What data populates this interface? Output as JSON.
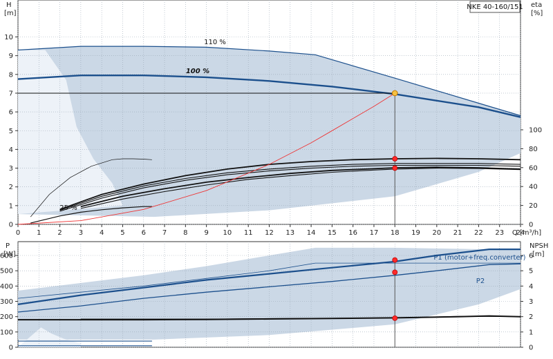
{
  "chart_data": [
    {
      "type": "line",
      "panel": "head",
      "title": "NKE 40-160/151",
      "ylabel_left": "H\n[m]",
      "ylabel_right": "eta\n[%]",
      "xlabel": "Q [m³/h]",
      "xlim": [
        0,
        24
      ],
      "ylim_left": [
        0,
        11
      ],
      "ylim_right": [
        0,
        100
      ],
      "x_ticks": [
        0,
        1,
        2,
        3,
        4,
        5,
        6,
        7,
        8,
        9,
        10,
        11,
        12,
        13,
        14,
        15,
        16,
        17,
        18,
        19,
        20,
        21,
        22,
        23,
        24
      ],
      "left_ticks": [
        0,
        1,
        2,
        3,
        4,
        5,
        6,
        7,
        8,
        9,
        10
      ],
      "right_ticks": [
        0,
        20,
        40,
        60,
        80,
        100
      ],
      "grid": true,
      "envelope_max": {
        "x": [
          0,
          3,
          6,
          9,
          12,
          14.2,
          18,
          22.5,
          24
        ],
        "y": [
          9.3,
          9.5,
          9.5,
          9.45,
          9.25,
          9.05,
          7.8,
          6.3,
          5.8
        ]
      },
      "envelope_min": {
        "x": [
          0,
          6.5,
          12,
          18,
          22,
          24
        ],
        "y": [
          0.55,
          0.4,
          0.75,
          1.5,
          2.8,
          3.8
        ]
      },
      "light_zone": {
        "x": [
          0,
          1.3,
          2.3,
          2.8,
          3.6,
          4.5,
          5
        ],
        "y": [
          9.3,
          9.3,
          7.7,
          5.2,
          3.5,
          2.2,
          1.0
        ]
      },
      "series": [
        {
          "name": "110 %",
          "x": [
            0,
            3,
            6,
            9,
            12,
            14.2,
            18,
            22.5,
            24
          ],
          "y": [
            9.3,
            9.5,
            9.5,
            9.45,
            9.25,
            9.05,
            7.8,
            6.3,
            5.8
          ]
        },
        {
          "name": "100 %",
          "x": [
            0,
            3,
            6,
            9,
            12,
            15,
            18,
            20,
            22,
            24
          ],
          "y": [
            7.75,
            7.95,
            7.95,
            7.85,
            7.65,
            7.35,
            6.95,
            6.6,
            6.25,
            5.72
          ]
        },
        {
          "name": "25 %",
          "x": [
            0.6,
            2,
            3,
            4,
            5,
            6,
            6.4
          ],
          "y": [
            0.07,
            0.45,
            0.65,
            0.78,
            0.88,
            0.95,
            0.95
          ]
        },
        {
          "x": [
            0.6,
            1.5,
            2.5,
            3.5,
            4.5,
            5,
            5.5,
            6,
            6.4
          ],
          "y": [
            0.4,
            1.6,
            2.5,
            3.1,
            3.45,
            3.5,
            3.5,
            3.48,
            3.45
          ]
        },
        {
          "x": [
            2,
            4,
            6,
            8,
            10,
            12,
            14,
            16,
            18,
            20,
            22,
            24
          ],
          "y": [
            0.7,
            1.4,
            1.95,
            2.35,
            2.65,
            2.85,
            3.0,
            3.1,
            3.15,
            3.15,
            3.15,
            3.1
          ]
        },
        {
          "x": [
            2,
            4,
            6,
            8,
            10,
            12,
            14,
            16,
            18,
            20,
            22,
            24
          ],
          "y": [
            0.75,
            1.5,
            2.05,
            2.45,
            2.75,
            2.95,
            3.1,
            3.2,
            3.25,
            3.25,
            3.25,
            3.2
          ]
        },
        {
          "x": [
            2,
            4,
            6,
            8,
            10,
            12,
            14,
            16,
            18,
            20,
            22,
            24
          ],
          "y": [
            0.8,
            1.6,
            2.15,
            2.6,
            2.95,
            3.2,
            3.35,
            3.45,
            3.5,
            3.52,
            3.5,
            3.45
          ]
        },
        {
          "x": [
            3,
            5,
            7,
            9,
            11,
            13,
            15,
            17,
            18,
            20,
            22,
            24
          ],
          "y": [
            0.85,
            1.35,
            1.75,
            2.1,
            2.4,
            2.6,
            2.78,
            2.9,
            2.95,
            3.0,
            2.98,
            2.92
          ]
        },
        {
          "x": [
            3,
            5,
            7,
            9,
            11,
            13,
            15,
            17,
            18,
            20,
            22,
            24
          ],
          "y": [
            0.95,
            1.5,
            1.9,
            2.25,
            2.5,
            2.72,
            2.88,
            2.97,
            3.02,
            3.05,
            3.02,
            2.95
          ]
        }
      ],
      "system_curve": {
        "x": [
          0,
          3,
          6,
          9,
          12,
          14,
          15,
          16,
          17,
          18
        ],
        "y": [
          0,
          0.2,
          0.8,
          1.8,
          3.2,
          4.35,
          5.0,
          5.65,
          6.3,
          7.0
        ]
      },
      "duty_point": {
        "x": 18,
        "y": 7.0
      },
      "red_points": [
        {
          "x": 18,
          "y": 3.5
        },
        {
          "x": 18,
          "y": 3.0
        }
      ],
      "annotations": [
        "110 %",
        "100 %",
        "25 %"
      ]
    },
    {
      "type": "line",
      "panel": "power",
      "ylabel_left": "P\n[W]",
      "ylabel_right": "NPSH\n[m]",
      "xlim": [
        0,
        24
      ],
      "ylim_left": [
        0,
        700
      ],
      "ylim_right": [
        0,
        7
      ],
      "left_ticks": [
        0,
        100,
        200,
        300,
        400,
        500,
        600
      ],
      "right_ticks": [
        0,
        1,
        2,
        3,
        4,
        5,
        6
      ],
      "grid": true,
      "envelope_max": {
        "x": [
          0,
          3,
          6,
          9,
          12,
          14.2,
          18,
          22.5,
          24
        ],
        "y": [
          370,
          420,
          470,
          530,
          600,
          650,
          650,
          640,
          640
        ]
      },
      "envelope_min": {
        "x": [
          0,
          6.5,
          12,
          18,
          22,
          24
        ],
        "y": [
          50,
          50,
          80,
          150,
          280,
          380
        ]
      },
      "light_zone": {
        "x": [
          1.1,
          1.6,
          2.2,
          3
        ],
        "y": [
          130,
          90,
          55,
          25
        ]
      },
      "series": [
        {
          "name": "P1 (motor+freq.converter)",
          "x": [
            0,
            3,
            6,
            9,
            12,
            15,
            18,
            20,
            22.5,
            24
          ],
          "y": [
            280,
            340,
            390,
            440,
            480,
            520,
            560,
            600,
            640,
            640
          ]
        },
        {
          "name": "P2",
          "x": [
            0,
            3,
            6,
            9,
            12,
            15,
            18,
            20,
            22.5,
            24
          ],
          "y": [
            230,
            270,
            320,
            360,
            395,
            430,
            470,
            500,
            540,
            545
          ]
        },
        {
          "x": [
            0,
            3,
            6,
            9,
            12,
            14.2,
            18,
            24
          ],
          "y": [
            320,
            360,
            400,
            450,
            500,
            550,
            550,
            550
          ]
        },
        {
          "x": [
            0,
            6.4
          ],
          "y": [
            40,
            40
          ]
        },
        {
          "x": [
            0,
            6.4
          ],
          "y": [
            10,
            10
          ]
        }
      ],
      "npsh": {
        "x": [
          0,
          3,
          6,
          9,
          12,
          15,
          18,
          21,
          22.5,
          24
        ],
        "y": [
          1.8,
          1.8,
          1.8,
          1.82,
          1.85,
          1.88,
          1.92,
          2.0,
          2.05,
          2.0
        ]
      },
      "npsh_envelope": {
        "x": [
          3,
          9,
          12,
          15,
          18,
          21,
          24
        ],
        "y": [
          1.85,
          1.85,
          1.88,
          1.9,
          1.93,
          2.02,
          2.0
        ]
      },
      "red_points": [
        {
          "x": 18,
          "y": 570
        },
        {
          "x": 18,
          "y": 490
        },
        {
          "x": 18,
          "y": 190
        }
      ],
      "annotations": [
        "P1 (motor+freq.converter)",
        "P2"
      ]
    }
  ]
}
